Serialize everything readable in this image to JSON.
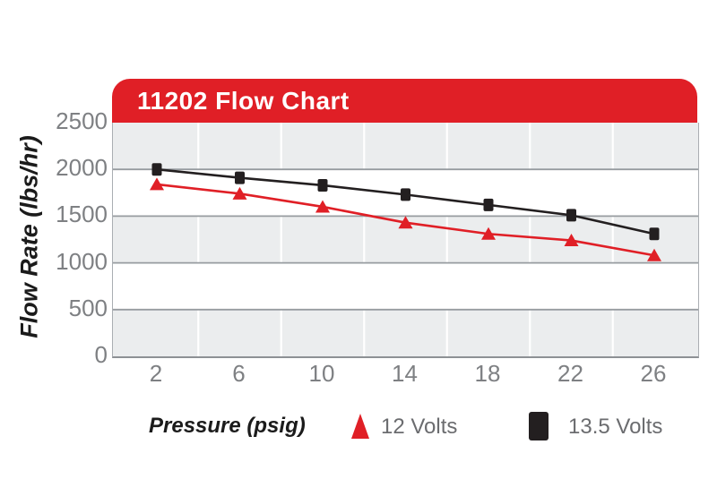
{
  "header": {
    "title": "11202 Flow Chart",
    "bg_color": "#e01f26",
    "text_color": "#ffffff"
  },
  "chart_data": {
    "type": "line",
    "title": "11202 Flow Chart",
    "x_label": "Pressure (psig)",
    "y_label": "Flow Rate (lbs/hr)",
    "x": [
      2,
      6,
      10,
      14,
      18,
      22,
      26
    ],
    "x_tick_labels": [
      "2",
      "6",
      "10",
      "14",
      "18",
      "22",
      "26"
    ],
    "y_ticks": [
      0,
      500,
      1000,
      1500,
      2000,
      2500
    ],
    "ylim": [
      0,
      2500
    ],
    "grid": {
      "horizontal_lines": true,
      "vertical_lines_at_midpoints": true,
      "alternating_bands": true
    },
    "legend_position": "bottom",
    "series": [
      {
        "name": "12 Volts",
        "marker": "triangle",
        "color": "#e01f26",
        "values": [
          1840,
          1740,
          1600,
          1430,
          1310,
          1240,
          1080
        ]
      },
      {
        "name": "13.5 Volts",
        "marker": "square",
        "color": "#231f20",
        "values": [
          2000,
          1910,
          1830,
          1730,
          1620,
          1510,
          1310
        ]
      }
    ]
  },
  "colors": {
    "band_gray": "#ebedee",
    "h_gridline": "#979ca0",
    "v_gridline": "#ffffff",
    "tick_text": "#7e8083",
    "legend_text": "#6b6c6f"
  }
}
